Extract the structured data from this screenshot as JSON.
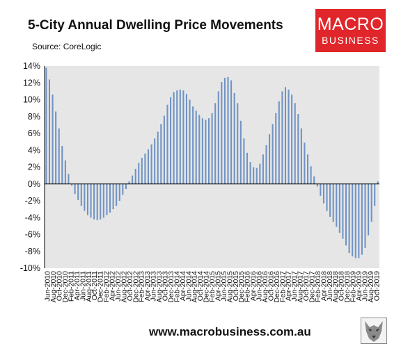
{
  "title": "5-City Annual Dwelling Price Movements",
  "source": "Source: CoreLogic",
  "logo": {
    "line1": "MACRO",
    "line2": "BUSINESS"
  },
  "website": "www.macrobusiness.com.au",
  "colors": {
    "bar": "#6f93c4",
    "plot_bg": "#e6e6e6",
    "logo_bg": "#e0262a"
  },
  "icons": {
    "logo_mascot": "wolf-icon"
  },
  "chart_data": {
    "type": "bar",
    "title": "5-City Annual Dwelling Price Movements",
    "ylim": [
      -10,
      14
    ],
    "y_ticks": [
      "14%",
      "12%",
      "10%",
      "8%",
      "6%",
      "4%",
      "2%",
      "0%",
      "-2%",
      "-4%",
      "-6%",
      "-8%",
      "-10%"
    ],
    "grid": false,
    "x_tick_labels": [
      "Jun-2010",
      "Aug-2010",
      "Oct-2010",
      "Dec-2010",
      "Feb-2011",
      "Apr-2011",
      "Jun-2011",
      "Aug-2011",
      "Oct-2011",
      "Dec-2011",
      "Feb-2012",
      "Apr-2012",
      "Jun-2012",
      "Aug-2012",
      "Oct-2012",
      "Dec-2012",
      "Feb-2013",
      "Apr-2013",
      "Jun-2013",
      "Aug-2013",
      "Oct-2013",
      "Dec-2013",
      "Feb-2014",
      "Apr-2014",
      "Jun-2014",
      "Aug-2014",
      "Oct-2014",
      "Dec-2014",
      "Feb-2015",
      "Apr-2015",
      "Jun-2015",
      "Aug-2015",
      "Oct-2015",
      "Dec-2015",
      "Feb-2016",
      "Apr-2016",
      "Jun-2016",
      "Aug-2016",
      "Oct-2016",
      "Dec-2016",
      "Feb-2017",
      "Apr-2017",
      "Jun-2017",
      "Aug-2017",
      "Oct-2017",
      "Dec-2017",
      "Feb-2018",
      "Apr-2018",
      "Jun-2018",
      "Aug-2018",
      "Oct-2018",
      "Dec-2018",
      "Feb-2019",
      "Apr-2019",
      "Jun-2019",
      "Aug-2019",
      "Oct-2019"
    ],
    "values": [
      13.8,
      12.4,
      10.6,
      8.6,
      6.6,
      4.5,
      2.8,
      1.2,
      -0.2,
      -1.2,
      -1.9,
      -2.6,
      -3.2,
      -3.7,
      -4.0,
      -4.2,
      -4.3,
      -4.2,
      -4.0,
      -3.7,
      -3.4,
      -3.0,
      -2.6,
      -2.0,
      -1.3,
      -0.6,
      0.3,
      1.0,
      1.8,
      2.5,
      3.1,
      3.6,
      4.1,
      4.7,
      5.4,
      6.2,
      7.1,
      8.1,
      9.4,
      10.3,
      10.9,
      11.1,
      11.2,
      11.1,
      10.7,
      10.0,
      9.2,
      8.7,
      8.2,
      7.8,
      7.6,
      7.8,
      8.4,
      9.6,
      11.0,
      12.1,
      12.6,
      12.7,
      12.3,
      10.8,
      9.6,
      7.5,
      5.4,
      3.7,
      2.6,
      2.0,
      1.9,
      2.4,
      3.5,
      4.6,
      5.9,
      7.1,
      8.4,
      9.8,
      11.0,
      11.5,
      11.2,
      10.6,
      9.6,
      8.3,
      6.6,
      4.9,
      3.5,
      2.1,
      0.9,
      -0.3,
      -1.4,
      -2.3,
      -3.2,
      -3.9,
      -4.5,
      -5.1,
      -5.8,
      -6.5,
      -7.3,
      -8.2,
      -8.6,
      -8.8,
      -8.8,
      -8.4,
      -7.6,
      -6.1,
      -4.5,
      -2.6,
      0.3
    ]
  }
}
